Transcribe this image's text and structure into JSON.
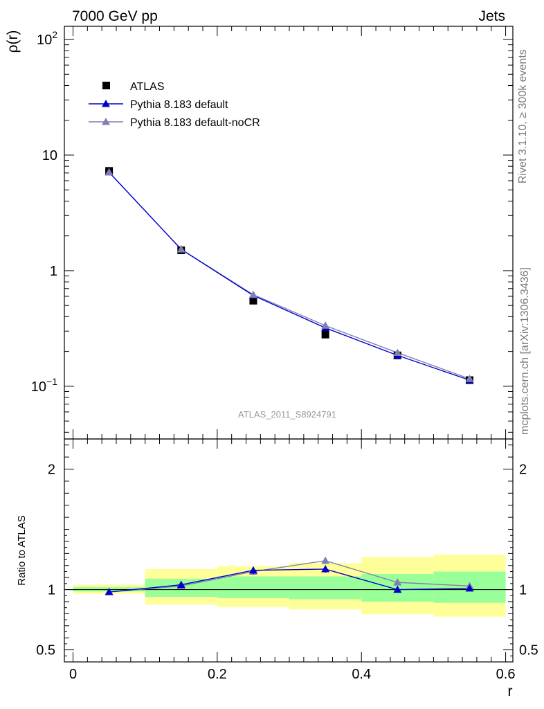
{
  "header": {
    "left": "7000 GeV pp",
    "right": "Jets"
  },
  "side_labels": {
    "upper": "Rivet 3.1.10, ≥ 300k events",
    "lower": "mcplots.cern.ch [arXiv:1306.3436]"
  },
  "watermark": "ATLAS_2011_S8924791",
  "colors": {
    "data": "#000000",
    "default": "#0000cc",
    "nocr": "#7f7fb2",
    "band_inner": "#99ff99",
    "band_outer": "#ffff99"
  },
  "chart_data": [
    {
      "id": "main",
      "type": "scatter",
      "ylabel": "ρ(r)",
      "yscale": "log",
      "ylim": [
        0.035,
        130
      ],
      "xlim": [
        -0.012,
        0.61
      ],
      "ytick_labels": [
        {
          "v": 0.1,
          "base": "10",
          "exp": "−1"
        },
        {
          "v": 1,
          "base": "1",
          "exp": ""
        },
        {
          "v": 10,
          "base": "10",
          "exp": ""
        },
        {
          "v": 100,
          "base": "10",
          "exp": "2"
        }
      ],
      "legend": [
        "ATLAS",
        "Pythia 8.183 default",
        "Pythia 8.183 default-noCR"
      ],
      "legend_position": "top-left",
      "x": [
        0.05,
        0.15,
        0.25,
        0.35,
        0.45,
        0.55
      ],
      "series": [
        {
          "name": "ATLAS",
          "values": [
            7.3,
            1.5,
            0.55,
            0.28,
            0.185,
            0.113
          ],
          "marker": "square",
          "line": false
        },
        {
          "name": "Pythia 8.183 default",
          "values": [
            7.1,
            1.53,
            0.61,
            0.32,
            0.185,
            0.113
          ],
          "marker": "triangle",
          "line": true
        },
        {
          "name": "Pythia 8.183 default-noCR",
          "values": [
            7.1,
            1.53,
            0.62,
            0.335,
            0.195,
            0.116
          ],
          "marker": "triangle",
          "line": true
        }
      ]
    },
    {
      "id": "ratio",
      "type": "line",
      "ylabel": "Ratio to ATLAS",
      "xlabel": "r",
      "ylim": [
        0.4,
        2.25
      ],
      "xlim": [
        -0.012,
        0.61
      ],
      "yticks": [
        0.5,
        1,
        2
      ],
      "ytick_labels": [
        "0.5",
        "1",
        "2"
      ],
      "xticks": [
        0,
        0.2,
        0.4,
        0.6
      ],
      "xtick_labels": [
        "0",
        "0.2",
        "0.4",
        "0.6"
      ],
      "bins": [
        [
          0,
          0.1
        ],
        [
          0.1,
          0.2
        ],
        [
          0.2,
          0.3
        ],
        [
          0.3,
          0.4
        ],
        [
          0.4,
          0.5
        ],
        [
          0.5,
          0.6
        ]
      ],
      "band_inner": [
        [
          0.985,
          1.02
        ],
        [
          0.94,
          1.09
        ],
        [
          0.93,
          1.11
        ],
        [
          0.92,
          1.11
        ],
        [
          0.9,
          1.13
        ],
        [
          0.89,
          1.15
        ]
      ],
      "band_outer": [
        [
          0.965,
          1.04
        ],
        [
          0.875,
          1.17
        ],
        [
          0.855,
          1.195
        ],
        [
          0.835,
          1.22
        ],
        [
          0.795,
          1.27
        ],
        [
          0.775,
          1.29
        ]
      ],
      "x": [
        0.05,
        0.15,
        0.25,
        0.35,
        0.45,
        0.55
      ],
      "series": [
        {
          "name": "Pythia 8.183 default",
          "values": [
            0.98,
            1.04,
            1.16,
            1.17,
            1.0,
            1.01
          ],
          "errors": [
            0.005,
            0.02,
            0.03,
            0.03,
            0.025,
            0.02
          ]
        },
        {
          "name": "Pythia 8.183 default-noCR",
          "values": [
            0.98,
            1.03,
            1.15,
            1.24,
            1.06,
            1.03
          ],
          "errors": [
            0.005,
            0.015,
            0.03,
            0.03,
            0.025,
            0.02
          ]
        }
      ]
    }
  ]
}
